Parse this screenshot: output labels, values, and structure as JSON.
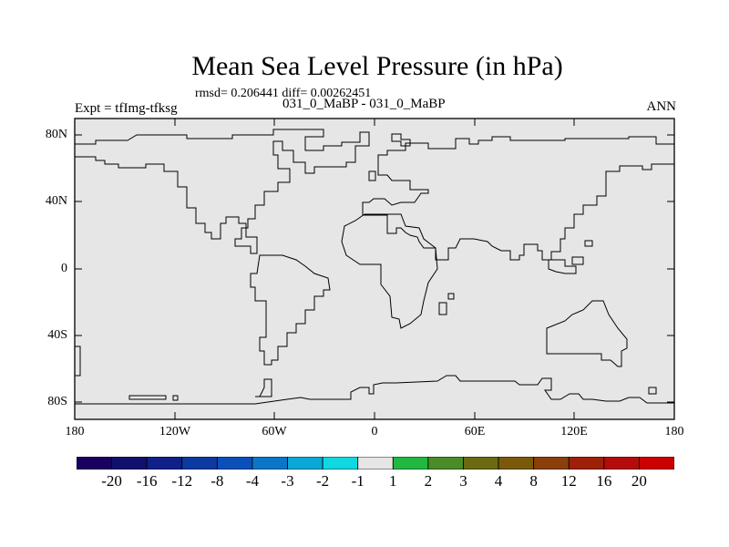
{
  "title": "Mean Sea Level Pressure (in hPa)",
  "stats": "rmsd= 0.206441 diff= 0.00262451",
  "subtitle_left": "Expt = tfImg-tfksg",
  "subtitle_center": "031_0_MaBP - 031_0_MaBP",
  "subtitle_right": "ANN",
  "y_ticks": [
    "80N",
    "40N",
    "0",
    "40S",
    "80S"
  ],
  "x_ticks": [
    "180",
    "120W",
    "60W",
    "0",
    "60E",
    "120E",
    "180"
  ],
  "colorbar": {
    "labels": [
      "-20",
      "-16",
      "-12",
      "-8",
      "-4",
      "-3",
      "-2",
      "-1",
      "1",
      "2",
      "3",
      "4",
      "8",
      "12",
      "16",
      "20"
    ],
    "colors": [
      "#1a0060",
      "#12106e",
      "#0f2088",
      "#0c3aa0",
      "#0a50b8",
      "#0a76c8",
      "#0aa8d8",
      "#10d8e0",
      "#e6e6e6",
      "#20b840",
      "#4a8c28",
      "#6a6a10",
      "#7a5a08",
      "#8a4008",
      "#9e2008",
      "#b40c0c",
      "#cc0000"
    ]
  },
  "chart_data": {
    "type": "map",
    "title": "Mean Sea Level Pressure (in hPa)",
    "projection": "cylindrical-equidistant",
    "lon_range": [
      -180,
      180
    ],
    "lat_range": [
      -90,
      90
    ],
    "field_value": "between -1 and 1 everywhere (light grey)",
    "colorbar_levels": [
      -20,
      -16,
      -12,
      -8,
      -4,
      -3,
      -2,
      -1,
      1,
      2,
      3,
      4,
      8,
      12,
      16,
      20
    ]
  }
}
